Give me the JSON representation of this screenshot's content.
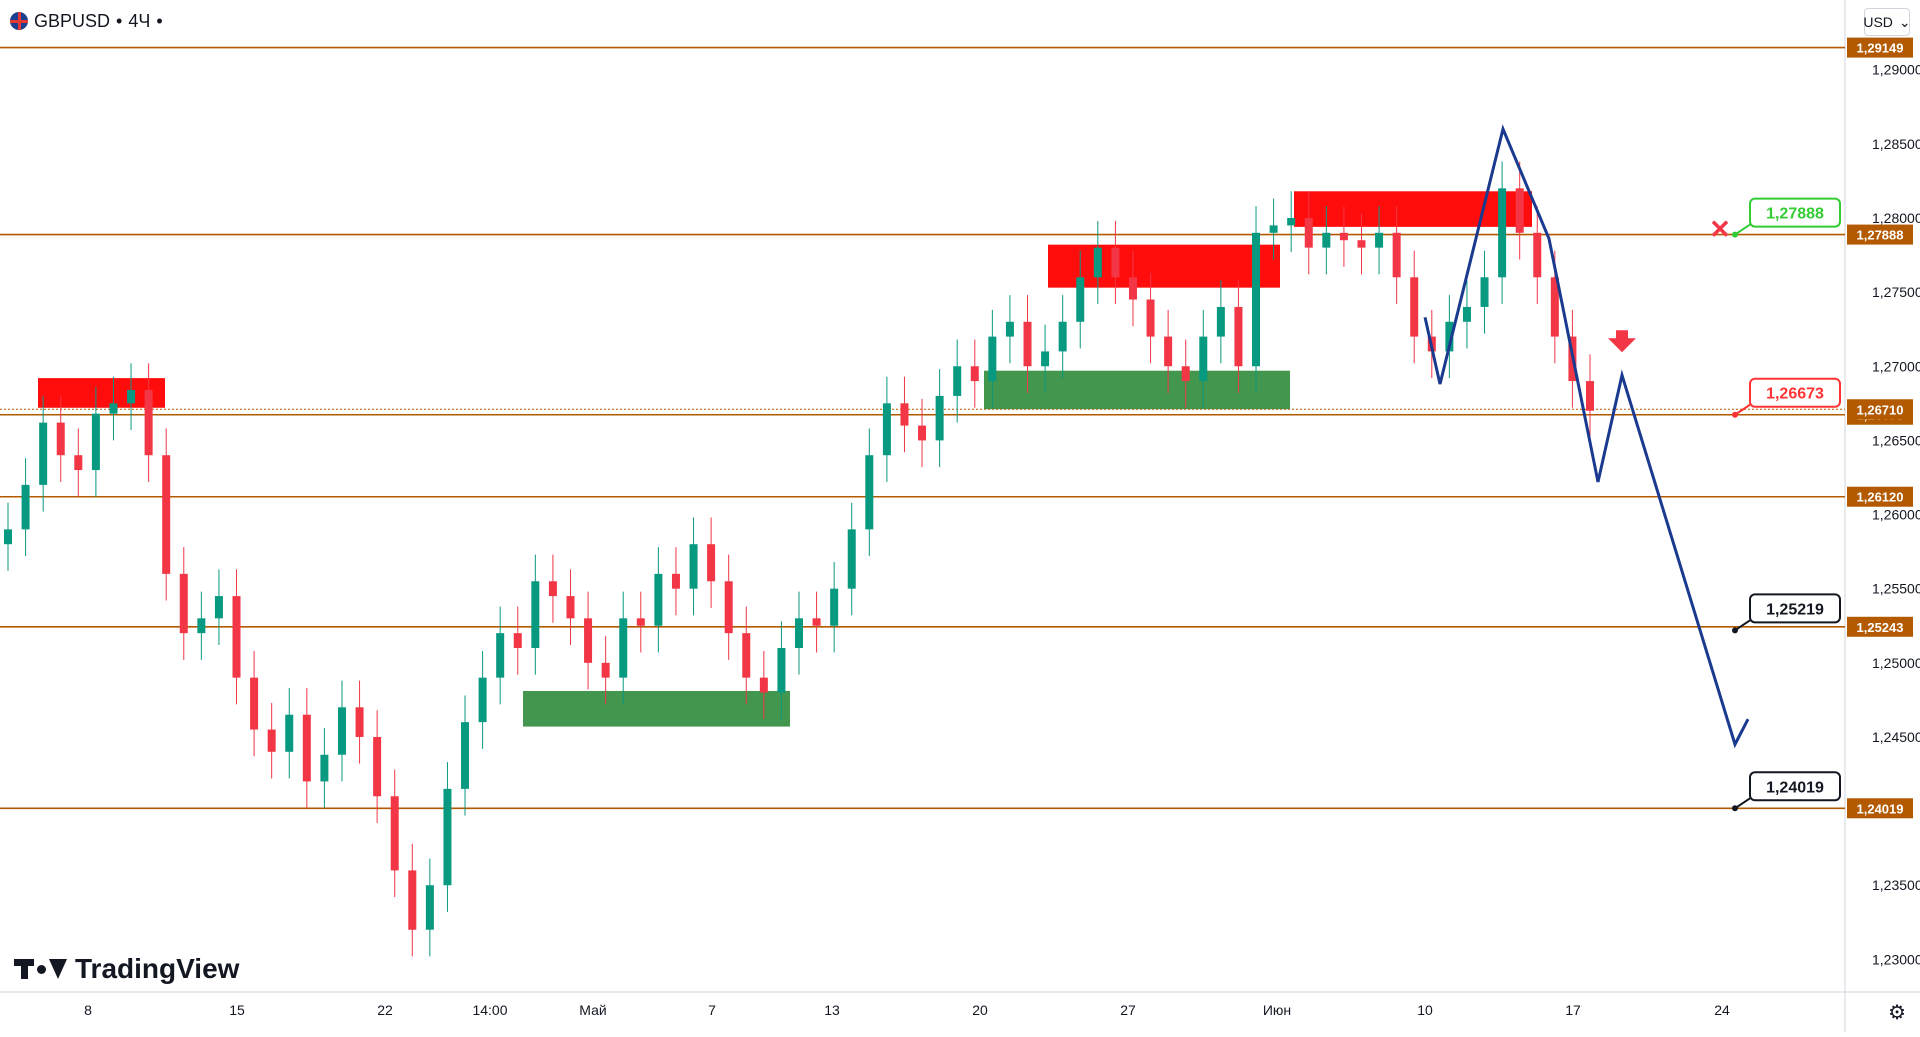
{
  "header": {
    "symbol": "GBPUSD",
    "separator": "•",
    "interval": "4Ч",
    "trail": "•"
  },
  "currency": {
    "label": "USD",
    "caret": "⌄"
  },
  "logo": {
    "text": "TradingView"
  },
  "settings_icon": "⚙",
  "colors": {
    "level_line": "#b35900",
    "level_tag": "#b35900",
    "up": "#089981",
    "down": "#f23645",
    "supply": "#ff0000",
    "demand": "#2e8b3a",
    "projection": "#1a3a8f",
    "stop_green": "#33cc33",
    "stop_red": "#ff3333",
    "target": "#131722"
  },
  "chart_data": {
    "type": "candlestick",
    "symbol": "GBPUSD",
    "timeframe": "4Ч",
    "ylim": [
      1.2278,
      1.2947
    ],
    "y_ticks": [
      {
        "v": 1.29,
        "label": "1,29000"
      },
      {
        "v": 1.285,
        "label": "1,28500"
      },
      {
        "v": 1.28,
        "label": "1,28000"
      },
      {
        "v": 1.275,
        "label": "1,27500"
      },
      {
        "v": 1.27,
        "label": "1,27000"
      },
      {
        "v": 1.265,
        "label": "1,26500"
      },
      {
        "v": 1.26,
        "label": "1,26000"
      },
      {
        "v": 1.255,
        "label": "1,25500"
      },
      {
        "v": 1.25,
        "label": "1,25000"
      },
      {
        "v": 1.245,
        "label": "1,24500"
      },
      {
        "v": 1.235,
        "label": "1,23500"
      },
      {
        "v": 1.23,
        "label": "1,23000"
      }
    ],
    "x_ticks": [
      "8",
      "15",
      "22",
      "14:00",
      "Май",
      "7",
      "13",
      "20",
      "27",
      "Июн",
      "10",
      "17",
      "24"
    ],
    "levels": [
      {
        "v": 1.29149,
        "label": "1,29149"
      },
      {
        "v": 1.27888,
        "label": "1,27888"
      },
      {
        "v": 1.26673,
        "label": "1,26673"
      },
      {
        "v": 1.2612,
        "label": "1,26120"
      },
      {
        "v": 1.25243,
        "label": "1,25243"
      },
      {
        "v": 1.24019,
        "label": "1,24019"
      }
    ],
    "last_price": {
      "v": 1.2671,
      "label": "1,26710",
      "color": "#b35900"
    },
    "stop_loss": {
      "v": 1.27888,
      "label": "1,27888"
    },
    "entry": {
      "v": 1.26673,
      "label": "1,26673"
    },
    "targets": [
      {
        "v": 1.25219,
        "label": "1,25219"
      },
      {
        "v": 1.24019,
        "label": "1,24019"
      }
    ],
    "sell_arrow": {
      "x": "17",
      "v": 1.27
    },
    "zones": [
      {
        "kind": "supply",
        "x0": "8",
        "x1": "8",
        "y0": 1.2692,
        "y1": 1.2672
      },
      {
        "kind": "demand",
        "x0": "14:00",
        "x1": "7",
        "y0": 1.2481,
        "y1": 1.2457
      },
      {
        "kind": "supply",
        "x0": "20",
        "x1": "27",
        "y0": 1.2782,
        "y1": 1.2753
      },
      {
        "kind": "demand",
        "x0": "20",
        "x1": "Июн",
        "y0": 1.2697,
        "y1": 1.2671
      },
      {
        "kind": "supply",
        "x0": "Июн",
        "x1": "10",
        "y0": 1.2818,
        "y1": 1.2794
      }
    ],
    "projection": [
      1.2733,
      1.2688,
      1.286,
      1.2786,
      1.2622,
      1.2694,
      1.2445,
      1.2462
    ],
    "series_close": [
      1.259,
      1.262,
      1.2662,
      1.264,
      1.263,
      1.2668,
      1.2675,
      1.2684,
      1.264,
      1.256,
      1.252,
      1.253,
      1.2545,
      1.249,
      1.2455,
      1.244,
      1.2465,
      1.242,
      1.2438,
      1.247,
      1.245,
      1.241,
      1.236,
      1.232,
      1.235,
      1.2415,
      1.246,
      1.249,
      1.252,
      1.251,
      1.2555,
      1.2545,
      1.253,
      1.25,
      1.249,
      1.253,
      1.2525,
      1.256,
      1.255,
      1.258,
      1.2555,
      1.252,
      1.249,
      1.248,
      1.251,
      1.253,
      1.2525,
      1.255,
      1.259,
      1.264,
      1.2675,
      1.266,
      1.265,
      1.268,
      1.27,
      1.269,
      1.272,
      1.273,
      1.27,
      1.271,
      1.273,
      1.276,
      1.278,
      1.276,
      1.2745,
      1.272,
      1.27,
      1.269,
      1.272,
      1.274,
      1.27,
      1.279,
      1.2795,
      1.28,
      1.278,
      1.279,
      1.2785,
      1.278,
      1.279,
      1.276,
      1.272,
      1.271,
      1.273,
      1.274,
      1.276,
      1.282,
      1.279,
      1.276,
      1.272,
      1.269,
      1.267
    ]
  }
}
